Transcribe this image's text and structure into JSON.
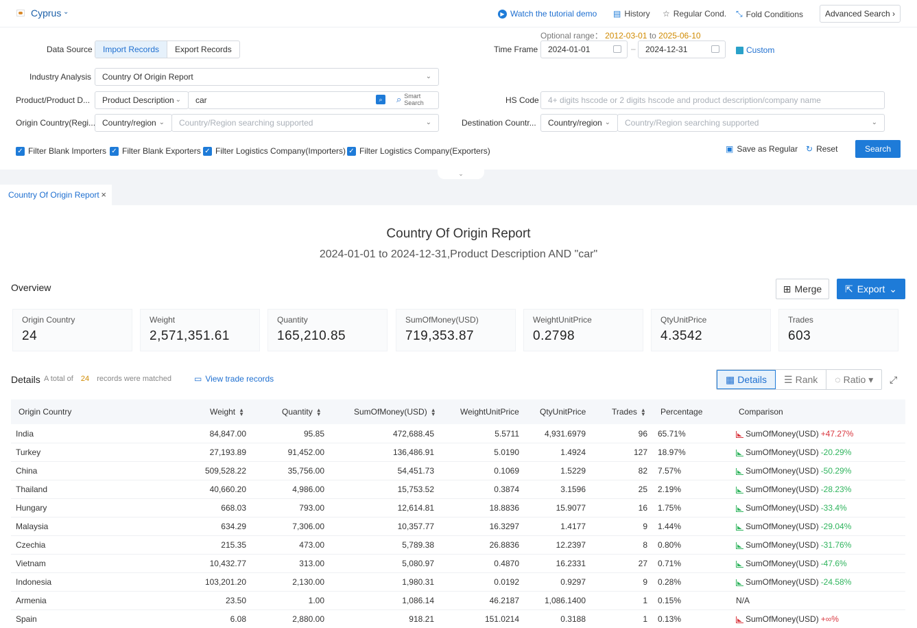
{
  "topbar": {
    "country": "Cyprus",
    "watch_tutorial": "Watch the tutorial demo",
    "history": "History",
    "regular_cond": "Regular Cond.",
    "fold_conditions": "Fold Conditions",
    "advanced_search": "Advanced Search"
  },
  "filters": {
    "data_source_label": "Data Source",
    "data_source_options": [
      "Import Records",
      "Export Records"
    ],
    "data_source_selected": "Import Records",
    "time_frame_label": "Time Frame",
    "optional_range_label": "Optional range：",
    "optional_range_from": "2012-03-01",
    "optional_range_to_word": "to",
    "optional_range_to": "2025-06-10",
    "date_from": "2024-01-01",
    "date_to": "2024-12-31",
    "custom": "Custom",
    "industry_label": "Industry Analysis",
    "industry_value": "Country Of Origin Report",
    "product_label": "Product/Product D...",
    "product_type": "Product Description",
    "product_value": "car",
    "smart_search_1": "Smart",
    "smart_search_2": "Search",
    "hs_label": "HS Code",
    "hs_placeholder": "4+ digits hscode or 2 digits hscode and product description/company name",
    "origin_label": "Origin Country(Regi...",
    "origin_type": "Country/region",
    "origin_placeholder": "Country/Region searching supported",
    "dest_label": "Destination Countr...",
    "dest_type": "Country/region",
    "dest_placeholder": "Country/Region searching supported",
    "checkboxes": [
      "Filter Blank Importers",
      "Filter Blank Exporters",
      "Filter Logistics Company(Importers)",
      "Filter Logistics Company(Exporters)"
    ],
    "save_regular": "Save as Regular",
    "reset": "Reset",
    "search": "Search"
  },
  "tab": {
    "label": "Country Of Origin Report"
  },
  "report": {
    "title": "Country Of Origin Report",
    "subtitle": "2024-01-01 to 2024-12-31,Product Description AND \"car\""
  },
  "overview": {
    "heading": "Overview",
    "merge": "Merge",
    "export": "Export",
    "cards": [
      {
        "label": "Origin Country",
        "value": "24"
      },
      {
        "label": "Weight",
        "value": "2,571,351.61"
      },
      {
        "label": "Quantity",
        "value": "165,210.85"
      },
      {
        "label": "SumOfMoney(USD)",
        "value": "719,353.87"
      },
      {
        "label": "WeightUnitPrice",
        "value": "0.2798"
      },
      {
        "label": "QtyUnitPrice",
        "value": "4.3542"
      },
      {
        "label": "Trades",
        "value": "603"
      }
    ]
  },
  "details": {
    "heading": "Details",
    "meta_prefix": "A total of",
    "meta_count": "24",
    "meta_suffix": "records were matched",
    "view_trade": "View trade records",
    "views": [
      "Details",
      "Rank",
      "Ratio"
    ],
    "columns": [
      "Origin Country",
      "Weight",
      "Quantity",
      "SumOfMoney(USD)",
      "WeightUnitPrice",
      "QtyUnitPrice",
      "Trades",
      "Percentage",
      "Comparison"
    ],
    "rows": [
      {
        "country": "India",
        "weight": "84,847.00",
        "quantity": "95.85",
        "sum": "472,688.45",
        "wup": "5.5711",
        "qup": "4,931.6979",
        "trades": "96",
        "pct": "65.71%",
        "cmp_label": "SumOfMoney(USD)",
        "cmp_val": "+47.27%",
        "dir": "up"
      },
      {
        "country": "Turkey",
        "weight": "27,193.89",
        "quantity": "91,452.00",
        "sum": "136,486.91",
        "wup": "5.0190",
        "qup": "1.4924",
        "trades": "127",
        "pct": "18.97%",
        "cmp_label": "SumOfMoney(USD)",
        "cmp_val": "-20.29%",
        "dir": "down"
      },
      {
        "country": "China",
        "weight": "509,528.22",
        "quantity": "35,756.00",
        "sum": "54,451.73",
        "wup": "0.1069",
        "qup": "1.5229",
        "trades": "82",
        "pct": "7.57%",
        "cmp_label": "SumOfMoney(USD)",
        "cmp_val": "-50.29%",
        "dir": "down"
      },
      {
        "country": "Thailand",
        "weight": "40,660.20",
        "quantity": "4,986.00",
        "sum": "15,753.52",
        "wup": "0.3874",
        "qup": "3.1596",
        "trades": "25",
        "pct": "2.19%",
        "cmp_label": "SumOfMoney(USD)",
        "cmp_val": "-28.23%",
        "dir": "down"
      },
      {
        "country": "Hungary",
        "weight": "668.03",
        "quantity": "793.00",
        "sum": "12,614.81",
        "wup": "18.8836",
        "qup": "15.9077",
        "trades": "16",
        "pct": "1.75%",
        "cmp_label": "SumOfMoney(USD)",
        "cmp_val": "-33.4%",
        "dir": "down"
      },
      {
        "country": "Malaysia",
        "weight": "634.29",
        "quantity": "7,306.00",
        "sum": "10,357.77",
        "wup": "16.3297",
        "qup": "1.4177",
        "trades": "9",
        "pct": "1.44%",
        "cmp_label": "SumOfMoney(USD)",
        "cmp_val": "-29.04%",
        "dir": "down"
      },
      {
        "country": "Czechia",
        "weight": "215.35",
        "quantity": "473.00",
        "sum": "5,789.38",
        "wup": "26.8836",
        "qup": "12.2397",
        "trades": "8",
        "pct": "0.80%",
        "cmp_label": "SumOfMoney(USD)",
        "cmp_val": "-31.76%",
        "dir": "down"
      },
      {
        "country": "Vietnam",
        "weight": "10,432.77",
        "quantity": "313.00",
        "sum": "5,080.97",
        "wup": "0.4870",
        "qup": "16.2331",
        "trades": "27",
        "pct": "0.71%",
        "cmp_label": "SumOfMoney(USD)",
        "cmp_val": "-47.6%",
        "dir": "down"
      },
      {
        "country": "Indonesia",
        "weight": "103,201.20",
        "quantity": "2,130.00",
        "sum": "1,980.31",
        "wup": "0.0192",
        "qup": "0.9297",
        "trades": "9",
        "pct": "0.28%",
        "cmp_label": "SumOfMoney(USD)",
        "cmp_val": "-24.58%",
        "dir": "down"
      },
      {
        "country": "Armenia",
        "weight": "23.50",
        "quantity": "1.00",
        "sum": "1,086.14",
        "wup": "46.2187",
        "qup": "1,086.1400",
        "trades": "1",
        "pct": "0.15%",
        "cmp_label": "N/A",
        "cmp_val": "",
        "dir": "none"
      },
      {
        "country": "Spain",
        "weight": "6.08",
        "quantity": "2,880.00",
        "sum": "918.21",
        "wup": "151.0214",
        "qup": "0.3188",
        "trades": "1",
        "pct": "0.13%",
        "cmp_label": "SumOfMoney(USD)",
        "cmp_val": "+∞%",
        "dir": "up"
      }
    ]
  },
  "colors": {
    "accent": "#1e7bd8",
    "positive": "#d9363e",
    "negative": "#2fb45d",
    "highlight": "#d08a00"
  }
}
